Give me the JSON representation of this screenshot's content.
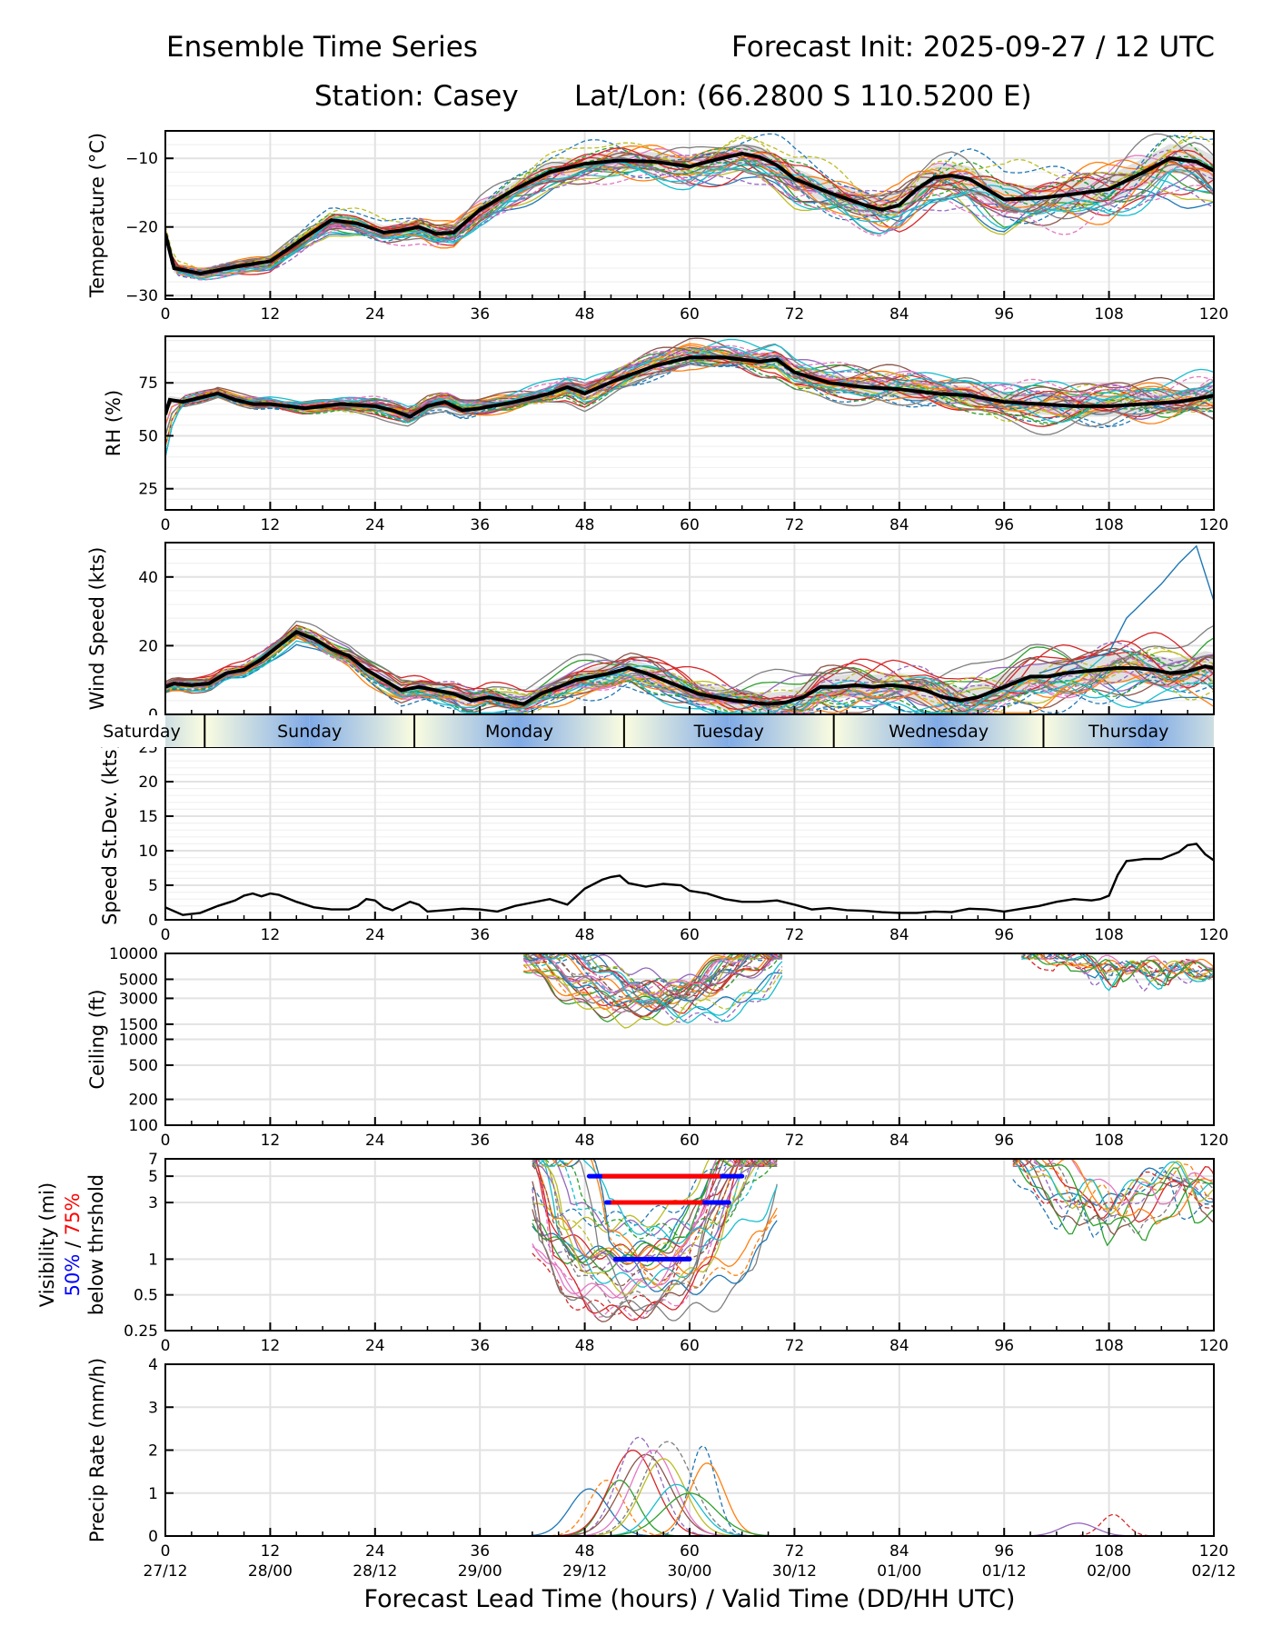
{
  "header": {
    "title_left": "Ensemble Time Series",
    "title_right": "Forecast Init: 2025-09-27 / 12 UTC",
    "station": "Station: Casey",
    "latlon": "Lat/Lon: (66.2800 S 110.5200 E)"
  },
  "chart_data": [
    {
      "type": "line",
      "id": "temperature",
      "ylabel": "Temperature (°C)",
      "xlim": [
        0,
        120
      ],
      "ylim": [
        -30.5,
        -6
      ],
      "yticks": [
        -30,
        -20,
        -10
      ],
      "yticklabels": [
        "−30",
        "−20",
        "−10"
      ],
      "xticks": [
        0,
        12,
        24,
        36,
        48,
        60,
        72,
        84,
        96,
        108,
        120
      ],
      "grid": true,
      "series": [
        {
          "name": "ensemble mean",
          "x": [
            0,
            1,
            4,
            8,
            12,
            16,
            19,
            22,
            25,
            27,
            29,
            31,
            33,
            36,
            40,
            44,
            48,
            52,
            56,
            60,
            63,
            66,
            68,
            70,
            72,
            76,
            80,
            82,
            84,
            86,
            88,
            90,
            92,
            94,
            96,
            100,
            104,
            108,
            112,
            115,
            118,
            120
          ],
          "values": [
            -21,
            -26,
            -26.8,
            -25.8,
            -25,
            -21.5,
            -19,
            -19.5,
            -20.8,
            -20.5,
            -20,
            -21,
            -20.8,
            -17.5,
            -14.5,
            -12,
            -10.8,
            -10.3,
            -10.5,
            -11.2,
            -10.2,
            -9.3,
            -9.8,
            -11,
            -13,
            -15,
            -16.8,
            -17.5,
            -16.8,
            -14.5,
            -12.8,
            -12.5,
            -13,
            -14.5,
            -16,
            -15.8,
            -15.2,
            -14.5,
            -12,
            -10,
            -10.5,
            -11.8
          ]
        },
        {
          "name": "ensemble spread (approx. range)",
          "lower_offset": -4,
          "upper_offset": 3
        }
      ]
    },
    {
      "type": "line",
      "id": "rh",
      "ylabel": "RH (%)",
      "xlim": [
        0,
        120
      ],
      "ylim": [
        15,
        97
      ],
      "yticks": [
        25,
        50,
        75
      ],
      "yticklabels": [
        "25",
        "50",
        "75"
      ],
      "xticks": [
        0,
        12,
        24,
        36,
        48,
        60,
        72,
        84,
        96,
        108,
        120
      ],
      "grid": true,
      "series": [
        {
          "name": "ensemble mean",
          "x": [
            0,
            0.5,
            2,
            4,
            6,
            8,
            10,
            12,
            16,
            20,
            24,
            26,
            28,
            30,
            32,
            34,
            36,
            40,
            44,
            46,
            48,
            52,
            56,
            60,
            64,
            68,
            70,
            72,
            76,
            80,
            84,
            88,
            92,
            96,
            100,
            104,
            108,
            112,
            116,
            120
          ],
          "values": [
            60,
            67,
            66,
            68,
            70,
            67,
            65,
            65,
            63,
            65,
            64,
            62,
            59,
            64,
            66,
            62,
            63,
            66,
            70,
            73,
            70,
            77,
            83,
            87,
            87,
            85,
            86,
            80,
            75,
            73,
            72,
            70,
            69,
            66,
            65,
            64,
            64,
            65,
            66,
            69
          ]
        }
      ]
    },
    {
      "type": "line",
      "id": "wind",
      "ylabel": "Wind Speed (kts)",
      "xlim": [
        0,
        120
      ],
      "ylim": [
        0,
        50
      ],
      "yticks": [
        0,
        20,
        40
      ],
      "yticklabels": [
        "0",
        "20",
        "40"
      ],
      "xticks": [
        0,
        12,
        24,
        36,
        48,
        60,
        72,
        84,
        96,
        108,
        120
      ],
      "grid": true,
      "series": [
        {
          "name": "ensemble mean",
          "x": [
            0,
            1,
            3,
            5,
            7,
            9,
            11,
            13,
            15,
            17,
            19,
            21,
            23,
            25,
            27,
            29,
            31,
            33,
            35,
            37,
            39,
            41,
            43,
            45,
            47,
            49,
            51,
            53,
            55,
            57,
            59,
            61,
            63,
            65,
            67,
            69,
            71,
            73,
            75,
            77,
            79,
            81,
            83,
            85,
            87,
            89,
            91,
            93,
            95,
            97,
            99,
            101,
            103,
            105,
            107,
            109,
            111,
            113,
            115,
            117,
            119,
            120
          ],
          "values": [
            8,
            9,
            8.5,
            9,
            12,
            13,
            16,
            20,
            24,
            22,
            19,
            17,
            13,
            10,
            7,
            8,
            7,
            6,
            4,
            5,
            4,
            3,
            6,
            8,
            10,
            11,
            12,
            13.5,
            12,
            10,
            8,
            6,
            5,
            4,
            3.5,
            3,
            3.5,
            5,
            8,
            8,
            8.5,
            8,
            8.5,
            8,
            7,
            5,
            4,
            5,
            7,
            9,
            11,
            11,
            12,
            12.5,
            13,
            13.5,
            13.5,
            13,
            12,
            12.5,
            14,
            13.5
          ]
        },
        {
          "name": "outlier member (max)",
          "x": [
            100,
            104,
            108,
            110,
            112,
            114,
            116,
            118,
            120
          ],
          "values": [
            12,
            15,
            18,
            28,
            33,
            38,
            44,
            49,
            33
          ]
        }
      ]
    },
    {
      "type": "line",
      "id": "speed_stdev",
      "ylabel": "Speed St.Dev. (kts)",
      "xlim": [
        0,
        120
      ],
      "ylim": [
        0,
        25
      ],
      "yticks": [
        0,
        5,
        10,
        15,
        20,
        25
      ],
      "yticklabels": [
        "0",
        "5",
        "10",
        "15",
        "20",
        "25"
      ],
      "xticks": [
        0,
        12,
        24,
        36,
        48,
        60,
        72,
        84,
        96,
        108,
        120
      ],
      "grid": true,
      "series": [
        {
          "name": "speed std dev",
          "x": [
            0,
            2,
            4,
            6,
            8,
            9,
            10,
            11,
            12,
            13,
            15,
            17,
            19,
            21,
            22,
            23,
            24,
            25,
            26,
            27,
            28,
            29,
            30,
            32,
            34,
            36,
            38,
            40,
            42,
            44,
            46,
            48,
            50,
            51,
            52,
            53,
            55,
            57,
            59,
            60,
            62,
            64,
            66,
            68,
            70,
            72,
            74,
            76,
            78,
            80,
            82,
            84,
            86,
            88,
            90,
            92,
            94,
            96,
            98,
            100,
            102,
            104,
            106,
            107,
            108,
            109,
            110,
            112,
            114,
            116,
            117,
            118,
            119,
            120
          ],
          "values": [
            1.8,
            0.7,
            1,
            2,
            2.8,
            3.5,
            3.8,
            3.4,
            3.8,
            3.6,
            2.6,
            1.8,
            1.5,
            1.5,
            2,
            3,
            2.8,
            1.8,
            1.4,
            2,
            2.6,
            2.2,
            1.2,
            1.4,
            1.6,
            1.5,
            1.2,
            2,
            2.5,
            3,
            2.2,
            4.5,
            5.8,
            6.2,
            6.4,
            5.3,
            4.8,
            5.2,
            5,
            4.2,
            3.8,
            3,
            2.6,
            2.6,
            2.8,
            2.2,
            1.5,
            1.7,
            1.4,
            1.3,
            1.1,
            1,
            1,
            1.2,
            1.1,
            1.6,
            1.5,
            1.2,
            1.6,
            2,
            2.6,
            3,
            2.8,
            3,
            3.5,
            6.5,
            8.5,
            8.8,
            8.8,
            9.8,
            10.8,
            11,
            9.5,
            8.6
          ]
        }
      ]
    },
    {
      "type": "line",
      "id": "ceiling",
      "ylabel": "Ceiling (ft)",
      "xlim": [
        0,
        120
      ],
      "ylim": [
        100,
        10000
      ],
      "yscale": "log",
      "yticks": [
        100,
        200,
        500,
        1000,
        1500,
        3000,
        5000,
        10000
      ],
      "yticklabels": [
        "100",
        "200",
        "500",
        "1000",
        "1500",
        "3000",
        "5000",
        "10000"
      ],
      "xticks": [
        0,
        12,
        24,
        36,
        48,
        60,
        72,
        84,
        96,
        108,
        120
      ],
      "grid": true,
      "series": [
        {
          "name": "member envelope (lowest)",
          "x": [
            43,
            46,
            49,
            52,
            55,
            58,
            61,
            64,
            67,
            69
          ],
          "values": [
            10000,
            6000,
            3000,
            2000,
            1500,
            1500,
            1700,
            3000,
            6500,
            10000
          ]
        },
        {
          "name": "member envelope (late)",
          "x": [
            100,
            103,
            105,
            107,
            109,
            111,
            113,
            116,
            120
          ],
          "values": [
            10000,
            7000,
            3500,
            6000,
            6000,
            3000,
            6500,
            4000,
            5500
          ]
        }
      ]
    },
    {
      "type": "line",
      "id": "visibility",
      "ylabel_lines": [
        "Visibility (mi)",
        "50% / 75%",
        "below thrshold"
      ],
      "legend_50": "50%",
      "legend_sep": " / ",
      "legend_75": "75%",
      "legend_colors": {
        "p50": "#0000ff",
        "p75": "#ff0000"
      },
      "xlim": [
        0,
        120
      ],
      "ylim": [
        0.25,
        7
      ],
      "yscale": "log",
      "yticks": [
        0.25,
        0.5,
        1,
        3,
        5,
        7
      ],
      "yticklabels": [
        "0.25",
        "0.5",
        "1",
        "3",
        "5",
        "7"
      ],
      "xticks": [
        0,
        12,
        24,
        36,
        48,
        60,
        72,
        84,
        96,
        108,
        120
      ],
      "grid": true,
      "threshold_bars": [
        {
          "threshold_mi": 5,
          "p50": [
            48.5,
            66
          ],
          "p75": [
            50,
            63.5
          ]
        },
        {
          "threshold_mi": 3,
          "p50": [
            50.5,
            64.5
          ],
          "p75": [
            51,
            61.5
          ]
        },
        {
          "threshold_mi": 1,
          "p50": [
            51.5,
            60
          ],
          "p75": null
        }
      ],
      "series": [
        {
          "name": "member envelope (lowest)",
          "x": [
            44,
            46,
            48,
            50,
            52,
            54,
            56,
            58,
            60,
            62,
            64,
            66,
            68
          ],
          "values": [
            7,
            1.2,
            0.6,
            0.4,
            0.33,
            0.32,
            0.33,
            0.35,
            0.4,
            0.5,
            0.9,
            2.5,
            7
          ]
        },
        {
          "name": "member envelope (late)",
          "x": [
            99,
            102,
            104,
            106,
            108,
            110,
            112,
            114,
            116,
            118,
            120
          ],
          "values": [
            7,
            4,
            2,
            1.5,
            2.5,
            1.1,
            2,
            3,
            4,
            5,
            2
          ]
        }
      ]
    },
    {
      "type": "line",
      "id": "precip",
      "ylabel": "Precip Rate (mm/h)",
      "xlabel": "Forecast Lead Time (hours) / Valid Time (DD/HH UTC)",
      "xlim": [
        0,
        120
      ],
      "ylim": [
        0,
        4
      ],
      "yticks": [
        0,
        1,
        2,
        3,
        4
      ],
      "yticklabels": [
        "0",
        "1",
        "2",
        "3",
        "4"
      ],
      "xticks": [
        0,
        12,
        24,
        36,
        48,
        60,
        72,
        84,
        96,
        108,
        120
      ],
      "xticklabels_valid": [
        "27/12",
        "28/00",
        "28/12",
        "29/00",
        "29/12",
        "30/00",
        "30/12",
        "01/00",
        "01/12",
        "02/00",
        "02/12"
      ],
      "grid": true,
      "series": [
        {
          "name": "member peaks",
          "peaks": [
            {
              "center": 48.5,
              "height": 1.1,
              "width": 2.2
            },
            {
              "center": 50.5,
              "height": 1.3,
              "width": 2.0
            },
            {
              "center": 52,
              "height": 1.3,
              "width": 2.0
            },
            {
              "center": 53.5,
              "height": 2.0,
              "width": 2.6
            },
            {
              "center": 54.2,
              "height": 2.3,
              "width": 2.4
            },
            {
              "center": 55,
              "height": 1.9,
              "width": 2.8
            },
            {
              "center": 55.8,
              "height": 2.0,
              "width": 2.5
            },
            {
              "center": 57.5,
              "height": 2.2,
              "width": 2.8
            },
            {
              "center": 57,
              "height": 1.8,
              "width": 2.5
            },
            {
              "center": 58.5,
              "height": 1.2,
              "width": 2.5
            },
            {
              "center": 61.5,
              "height": 2.1,
              "width": 1.5
            },
            {
              "center": 62,
              "height": 1.7,
              "width": 2.0
            },
            {
              "center": 60,
              "height": 1.0,
              "width": 3.0
            },
            {
              "center": 108.5,
              "height": 0.5,
              "width": 1.4
            },
            {
              "center": 104.5,
              "height": 0.3,
              "width": 2.0
            }
          ]
        }
      ]
    }
  ],
  "day_band": {
    "labels": [
      {
        "label": "Saturday",
        "start": 0,
        "end": 4.5
      },
      {
        "label": "Sunday",
        "start": 4.5,
        "end": 28.5
      },
      {
        "label": "Monday",
        "start": 28.5,
        "end": 52.5
      },
      {
        "label": "Tuesday",
        "start": 52.5,
        "end": 76.5
      },
      {
        "label": "Wednesday",
        "start": 76.5,
        "end": 100.5
      },
      {
        "label": "Thursday",
        "start": 100.5,
        "end": 120
      }
    ]
  },
  "member_colors": [
    "#1f77b4",
    "#ff7f0e",
    "#2ca02c",
    "#d62728",
    "#9467bd",
    "#8c564b",
    "#e377c2",
    "#7f7f7f",
    "#bcbd22",
    "#17becf"
  ]
}
